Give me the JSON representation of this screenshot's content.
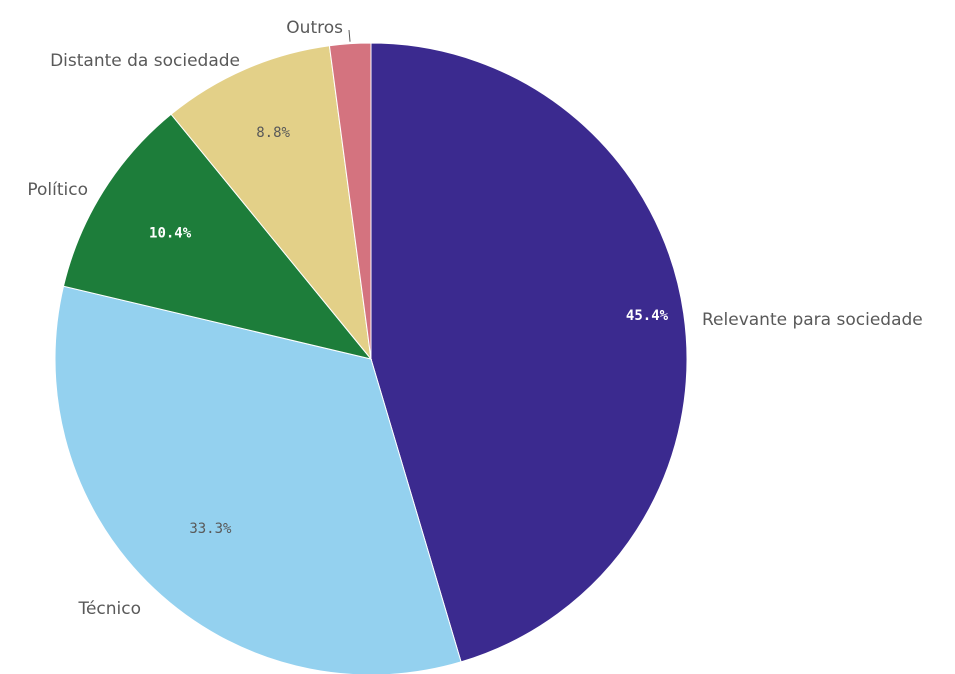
{
  "chart_data": {
    "type": "pie",
    "title": "",
    "start_angle_deg": 0,
    "direction": "clockwise",
    "slices": [
      {
        "label": "Relevante para sociedade",
        "value": 45.4,
        "value_label": "45.4%",
        "color": "#3b2a8f",
        "label_tone": "dark"
      },
      {
        "label": "Técnico",
        "value": 33.3,
        "value_label": "33.3%",
        "color": "#94d1ef",
        "label_tone": "light"
      },
      {
        "label": "Político",
        "value": 10.4,
        "value_label": "10.4%",
        "color": "#1d7d3a",
        "label_tone": "dark"
      },
      {
        "label": "Distante da sociedade",
        "value": 8.8,
        "value_label": "8.8%",
        "color": "#e3d088",
        "label_tone": "light"
      },
      {
        "label": "Outros",
        "value": 2.1,
        "value_label": "",
        "color": "#d4737f",
        "label_tone": "light"
      }
    ]
  }
}
